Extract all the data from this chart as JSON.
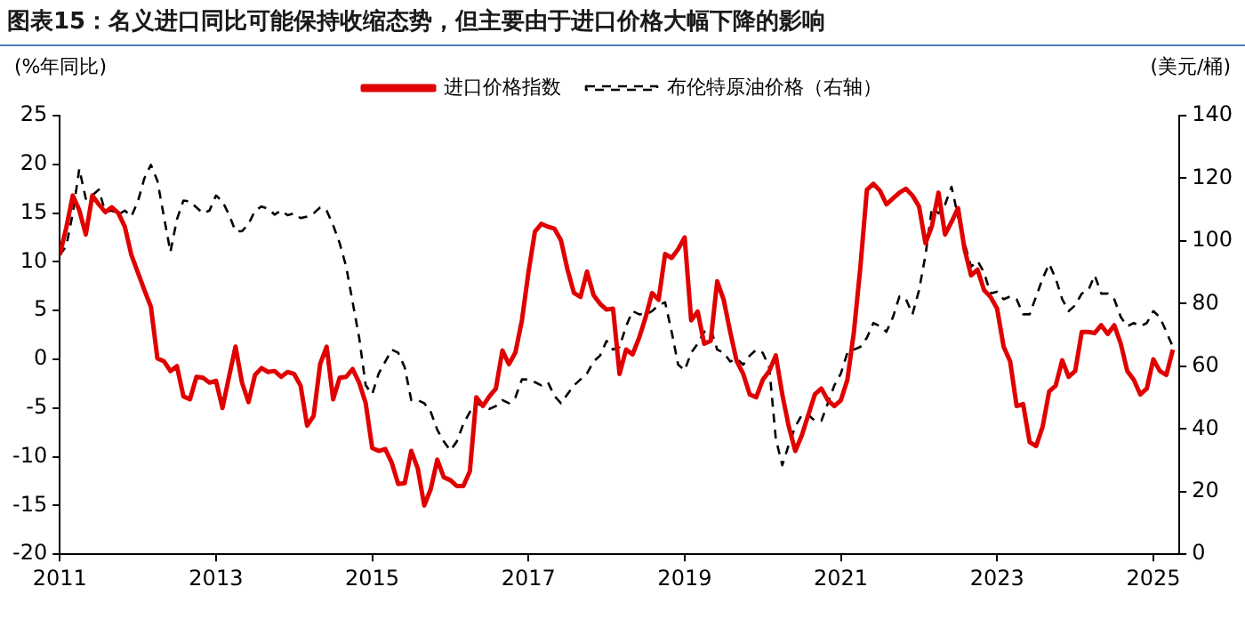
{
  "chart_data": {
    "type": "line",
    "title": "图表15：名义进口同比可能保持收缩态势，但主要由于进口价格大幅下降的影响",
    "ylabel": "(%年同比)",
    "y2label": "(美元/桶)",
    "x": [
      "2011-01",
      "2011-02",
      "2011-03",
      "2011-04",
      "2011-05",
      "2011-06",
      "2011-07",
      "2011-08",
      "2011-09",
      "2011-10",
      "2011-11",
      "2011-12",
      "2012-01",
      "2012-02",
      "2012-03",
      "2012-04",
      "2012-05",
      "2012-06",
      "2012-07",
      "2012-08",
      "2012-09",
      "2012-10",
      "2012-11",
      "2012-12",
      "2013-01",
      "2013-02",
      "2013-03",
      "2013-04",
      "2013-05",
      "2013-06",
      "2013-07",
      "2013-08",
      "2013-09",
      "2013-10",
      "2013-11",
      "2013-12",
      "2014-01",
      "2014-02",
      "2014-03",
      "2014-04",
      "2014-05",
      "2014-06",
      "2014-07",
      "2014-08",
      "2014-09",
      "2014-10",
      "2014-11",
      "2014-12",
      "2015-01",
      "2015-02",
      "2015-03",
      "2015-04",
      "2015-05",
      "2015-06",
      "2015-07",
      "2015-08",
      "2015-09",
      "2015-10",
      "2015-11",
      "2015-12",
      "2016-01",
      "2016-02",
      "2016-03",
      "2016-04",
      "2016-05",
      "2016-06",
      "2016-07",
      "2016-08",
      "2016-09",
      "2016-10",
      "2016-11",
      "2016-12",
      "2017-01",
      "2017-02",
      "2017-03",
      "2017-04",
      "2017-05",
      "2017-06",
      "2017-07",
      "2017-08",
      "2017-09",
      "2017-10",
      "2017-11",
      "2017-12",
      "2018-01",
      "2018-02",
      "2018-03",
      "2018-04",
      "2018-05",
      "2018-06",
      "2018-07",
      "2018-08",
      "2018-09",
      "2018-10",
      "2018-11",
      "2018-12",
      "2019-01",
      "2019-02",
      "2019-03",
      "2019-04",
      "2019-05",
      "2019-06",
      "2019-07",
      "2019-08",
      "2019-09",
      "2019-10",
      "2019-11",
      "2019-12",
      "2020-01",
      "2020-02",
      "2020-03",
      "2020-04",
      "2020-05",
      "2020-06",
      "2020-07",
      "2020-08",
      "2020-09",
      "2020-10",
      "2020-11",
      "2020-12",
      "2021-01",
      "2021-02",
      "2021-03",
      "2021-04",
      "2021-05",
      "2021-06",
      "2021-07",
      "2021-08",
      "2021-09",
      "2021-10",
      "2021-11",
      "2021-12",
      "2022-01",
      "2022-02",
      "2022-03",
      "2022-04",
      "2022-05",
      "2022-06",
      "2022-07",
      "2022-08",
      "2022-09",
      "2022-10",
      "2022-11",
      "2022-12",
      "2023-01",
      "2023-02",
      "2023-03",
      "2023-04",
      "2023-05",
      "2023-06",
      "2023-07",
      "2023-08",
      "2023-09",
      "2023-10",
      "2023-11",
      "2023-12",
      "2024-01",
      "2024-02",
      "2024-03",
      "2024-04",
      "2024-05",
      "2024-06",
      "2024-07",
      "2024-08",
      "2024-09",
      "2024-10",
      "2024-11",
      "2024-12",
      "2025-01",
      "2025-02",
      "2025-03",
      "2025-04"
    ],
    "series": [
      {
        "name": "进口价格指数",
        "color": "#e00000",
        "line_style": "solid",
        "values": [
          10.7,
          13.5,
          16.8,
          15.3,
          12.8,
          16.8,
          15.9,
          15.1,
          15.6,
          15,
          13.6,
          10.7,
          8.9,
          7.1,
          5.4,
          0.1,
          -0.2,
          -1.2,
          -0.7,
          -3.8,
          -4.1,
          -1.8,
          -1.9,
          -2.4,
          -2.2,
          -5,
          -1.8,
          1.3,
          -2.4,
          -4.4,
          -1.6,
          -0.9,
          -1.3,
          -1.2,
          -1.8,
          -1.3,
          -1.5,
          -2.7,
          -6.8,
          -5.8,
          -0.5,
          1.3,
          -4.1,
          -1.9,
          -1.8,
          -1,
          -2.4,
          -4.5,
          -9.1,
          -9.4,
          -9.2,
          -10.6,
          -12.8,
          -12.7,
          -9.4,
          -11.2,
          -15,
          -13.3,
          -10.3,
          -12.1,
          -12.4,
          -13,
          -13,
          -11.5,
          -3.9,
          -4.8,
          -3.8,
          -3,
          0.9,
          -0.5,
          0.7,
          4,
          8.9,
          13.1,
          13.9,
          13.6,
          13.4,
          12.2,
          9.2,
          6.8,
          6.4,
          9,
          6.6,
          5.7,
          5.1,
          5.2,
          -1.5,
          1,
          0.5,
          2.2,
          4.3,
          6.8,
          6.1,
          10.8,
          10.4,
          11.3,
          12.5,
          4,
          4.9,
          1.6,
          1.9,
          8,
          6.1,
          2.8,
          -0.2,
          -1.5,
          -3.6,
          -3.9,
          -2.1,
          -1.2,
          0.4,
          -3.6,
          -6.9,
          -9.4,
          -7.8,
          -5.7,
          -3.6,
          -3,
          -4.2,
          -4.8,
          -4.2,
          -2.1,
          2.8,
          9.5,
          17.4,
          18,
          17.3,
          15.9,
          16.5,
          17.1,
          17.5,
          16.8,
          15.7,
          11.9,
          13.7,
          17.1,
          12.8,
          14.1,
          15.5,
          11.3,
          8.6,
          9.2,
          7.1,
          6.4,
          5.2,
          1.3,
          -0.2,
          -4.8,
          -4.6,
          -8.5,
          -8.9,
          -6.9,
          -3.3,
          -2.7,
          -0.1,
          -1.8,
          -1.2,
          2.8,
          2.8,
          2.7,
          3.5,
          2.6,
          3.5,
          1.6,
          -1.2,
          -2.1,
          -3.6,
          -3,
          0,
          -1.2,
          -1.6,
          1
        ]
      },
      {
        "name": "布伦特原油价格（右轴）",
        "color": "#000000",
        "axis": "y2",
        "line_style": "dashed",
        "values": [
          95.5,
          98.4,
          108.8,
          123,
          113.5,
          114.5,
          116.4,
          109.2,
          109.7,
          108.4,
          109.7,
          107.8,
          112.6,
          120,
          124.3,
          119.2,
          107.8,
          96.5,
          106.9,
          112.9,
          112.6,
          110.7,
          108.8,
          109.7,
          114.5,
          112.6,
          108.4,
          103.1,
          103.1,
          105.4,
          109.7,
          111,
          110.3,
          108.4,
          109.7,
          108.2,
          108.8,
          107.3,
          107.8,
          108.8,
          110.7,
          109.7,
          105,
          99.3,
          91.8,
          80.4,
          69.1,
          53.9,
          51.1,
          57.7,
          61.5,
          65.3,
          64.3,
          59.6,
          49.2,
          49.2,
          48.2,
          45.4,
          39.7,
          36,
          33.1,
          36,
          41.6,
          45.4,
          48.2,
          47.3,
          46.4,
          47.3,
          49.2,
          48.2,
          50.1,
          55.8,
          55.8,
          54.9,
          53.9,
          54.9,
          50.5,
          48.2,
          51.1,
          53.9,
          55.8,
          57.7,
          61.5,
          63.4,
          68.1,
          65.3,
          66.2,
          72.8,
          77.6,
          76.6,
          76.6,
          77.6,
          79.5,
          80.4,
          71,
          60.5,
          58.7,
          64.3,
          67.2,
          71,
          71.9,
          65.3,
          64.3,
          61.5,
          62.4,
          60.5,
          63.4,
          65.3,
          64.3,
          59.6,
          36.9,
          28.4,
          35,
          40.7,
          44.5,
          44.5,
          42.6,
          42.6,
          48.2,
          53.9,
          57.7,
          64.3,
          65.3,
          66.2,
          69.1,
          73.8,
          72.8,
          71,
          75.7,
          82.3,
          81.4,
          76.6,
          84.2,
          95.5,
          110.7,
          108.8,
          111.6,
          117.3,
          107.8,
          99.3,
          91.8,
          93.6,
          89.9,
          83.2,
          83.8,
          81.4,
          82.3,
          81.4,
          76.6,
          76.6,
          82.3,
          88,
          92.7,
          88,
          81.4,
          77.6,
          79.5,
          83.2,
          84.2,
          89,
          83.2,
          83.2,
          81.4,
          75.7,
          72.8,
          73.8,
          72.8,
          73.8,
          77.6,
          75.7,
          71,
          66.2
        ]
      }
    ],
    "xlim": [
      "2011-01",
      "2025-05"
    ],
    "xticks": [
      "2011",
      "2013",
      "2015",
      "2017",
      "2019",
      "2021",
      "2023",
      "2025"
    ],
    "ylim": [
      -20,
      25
    ],
    "yticks": [
      -20,
      -15,
      -10,
      -5,
      0,
      5,
      10,
      15,
      20,
      25
    ],
    "y2lim": [
      0,
      140
    ],
    "y2ticks": [
      0,
      20,
      40,
      60,
      80,
      100,
      120,
      140
    ],
    "grid": false,
    "legend": "top",
    "marker": "none"
  }
}
